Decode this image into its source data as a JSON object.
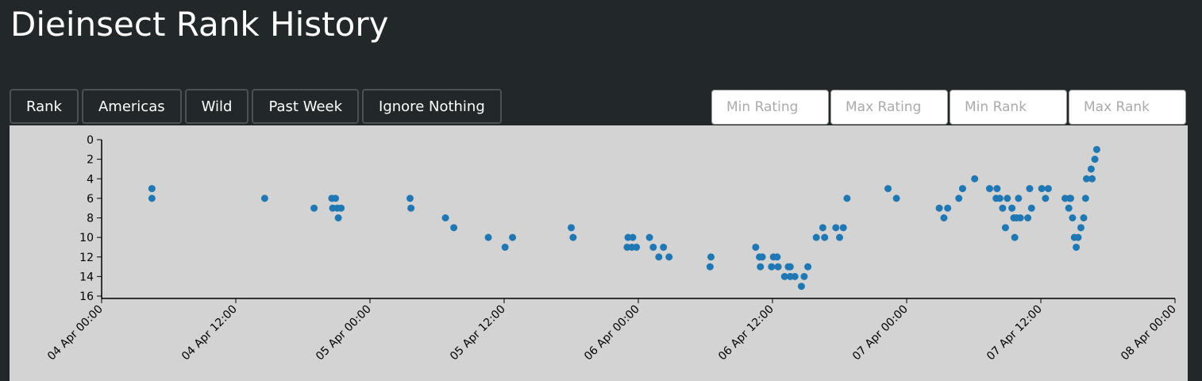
{
  "header": {
    "title": "Dieinsect Rank History"
  },
  "buttons": [
    "Rank",
    "Americas",
    "Wild",
    "Past Week",
    "Ignore Nothing"
  ],
  "inputs": [
    "Min Rating",
    "Max Rating",
    "Min Rank",
    "Max Rank"
  ],
  "chart_data": {
    "type": "scatter",
    "color": "#1f77b4",
    "y_inverted": true,
    "xlim": [
      "04 Apr 00:00",
      "08 Apr 00:00"
    ],
    "xticks": [
      "04 Apr 00:00",
      "04 Apr 12:00",
      "05 Apr 00:00",
      "05 Apr 12:00",
      "06 Apr 00:00",
      "06 Apr 12:00",
      "07 Apr 00:00",
      "07 Apr 12:00",
      "08 Apr 00:00"
    ],
    "ylim": [
      0,
      16
    ],
    "yticks": [
      0,
      2,
      4,
      6,
      8,
      10,
      12,
      14,
      16
    ],
    "x": [
      "04 Apr 04:30",
      "04 Apr 04:30",
      "04 Apr 14:35",
      "04 Apr 19:00",
      "04 Apr 20:35",
      "04 Apr 20:55",
      "04 Apr 20:40",
      "04 Apr 21:05",
      "04 Apr 21:25",
      "04 Apr 21:10",
      "05 Apr 03:35",
      "05 Apr 03:40",
      "05 Apr 06:45",
      "05 Apr 07:30",
      "05 Apr 10:35",
      "05 Apr 12:05",
      "05 Apr 12:45",
      "05 Apr 18:00",
      "05 Apr 18:10",
      "05 Apr 23:05",
      "05 Apr 23:30",
      "05 Apr 23:00",
      "05 Apr 23:25",
      "05 Apr 23:50",
      "06 Apr 01:00",
      "06 Apr 01:20",
      "06 Apr 01:50",
      "06 Apr 02:15",
      "06 Apr 02:45",
      "06 Apr 06:30",
      "06 Apr 06:25",
      "06 Apr 10:30",
      "06 Apr 10:50",
      "06 Apr 11:05",
      "06 Apr 10:55",
      "06 Apr 11:55",
      "06 Apr 12:05",
      "06 Apr 12:25",
      "06 Apr 12:30",
      "06 Apr 13:05",
      "06 Apr 13:25",
      "06 Apr 13:35",
      "06 Apr 13:35",
      "06 Apr 14:00",
      "06 Apr 14:35",
      "06 Apr 14:50",
      "06 Apr 15:10",
      "06 Apr 15:55",
      "06 Apr 16:30",
      "06 Apr 16:40",
      "06 Apr 17:40",
      "06 Apr 18:00",
      "06 Apr 18:20",
      "06 Apr 18:40",
      "06 Apr 22:20",
      "06 Apr 23:05",
      "07 Apr 02:55",
      "07 Apr 03:20",
      "07 Apr 03:40",
      "07 Apr 04:40",
      "07 Apr 05:00",
      "07 Apr 06:05",
      "07 Apr 07:25",
      "07 Apr 08:00",
      "07 Apr 08:05",
      "07 Apr 08:20",
      "07 Apr 08:35",
      "07 Apr 08:50",
      "07 Apr 09:00",
      "07 Apr 09:25",
      "07 Apr 09:35",
      "07 Apr 09:50",
      "07 Apr 10:10",
      "07 Apr 09:40",
      "07 Apr 10:00",
      "07 Apr 10:50",
      "07 Apr 11:00",
      "07 Apr 11:10",
      "07 Apr 12:05",
      "07 Apr 12:25",
      "07 Apr 12:40",
      "07 Apr 14:10",
      "07 Apr 14:35",
      "07 Apr 14:40",
      "07 Apr 14:30",
      "07 Apr 14:50",
      "07 Apr 15:00",
      "07 Apr 15:20",
      "07 Apr 15:10",
      "07 Apr 15:35",
      "07 Apr 15:50",
      "07 Apr 16:00",
      "07 Apr 16:05",
      "07 Apr 16:30",
      "07 Apr 16:35",
      "07 Apr 16:50",
      "07 Apr 17:00"
    ],
    "values": [
      5,
      6,
      6,
      7,
      6,
      6,
      7,
      7,
      7,
      8,
      6,
      7,
      8,
      9,
      10,
      11,
      10,
      9,
      10,
      10,
      10,
      11,
      11,
      11,
      10,
      11,
      12,
      11,
      12,
      12,
      13,
      11,
      12,
      12,
      13,
      13,
      12,
      12,
      13,
      14,
      13,
      13,
      14,
      14,
      15,
      14,
      13,
      10,
      9,
      10,
      9,
      10,
      9,
      6,
      5,
      6,
      7,
      8,
      7,
      6,
      5,
      4,
      5,
      6,
      5,
      6,
      7,
      9,
      6,
      7,
      8,
      8,
      8,
      10,
      6,
      8,
      5,
      7,
      5,
      6,
      5,
      6,
      6,
      6,
      7,
      8,
      10,
      10,
      11,
      9,
      8,
      6,
      4,
      3,
      4,
      2,
      1
    ]
  }
}
